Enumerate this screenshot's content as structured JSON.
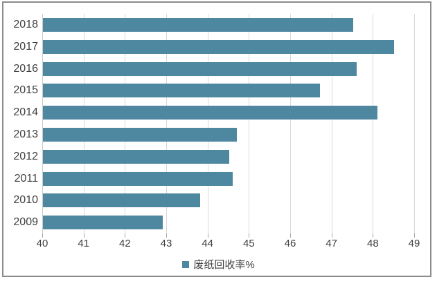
{
  "chart_data": {
    "type": "bar",
    "orientation": "horizontal",
    "title": "",
    "categories": [
      "2018",
      "2017",
      "2016",
      "2015",
      "2014",
      "2013",
      "2012",
      "2011",
      "2010",
      "2009"
    ],
    "series": [
      {
        "name": "废纸回收率%",
        "values": [
          47.5,
          48.5,
          47.6,
          46.7,
          48.1,
          44.7,
          44.5,
          44.6,
          43.8,
          42.9
        ]
      }
    ],
    "xlabel": "",
    "ylabel": "",
    "xlim": [
      40,
      49
    ],
    "x_ticks": [
      40,
      41,
      42,
      43,
      44,
      45,
      46,
      47,
      48,
      49
    ],
    "grid": true,
    "legend_position": "bottom",
    "bar_color": "#4e87a0"
  },
  "legend": {
    "label": "废纸回收率%",
    "swatch_color": "#4e87a0"
  },
  "colors": {
    "bar": "#4e87a0",
    "gridline": "#d9d9d9",
    "tick": "#a6a6a6",
    "text": "#404040",
    "frame_border": "#8b8b8b",
    "background": "#ffffff"
  }
}
